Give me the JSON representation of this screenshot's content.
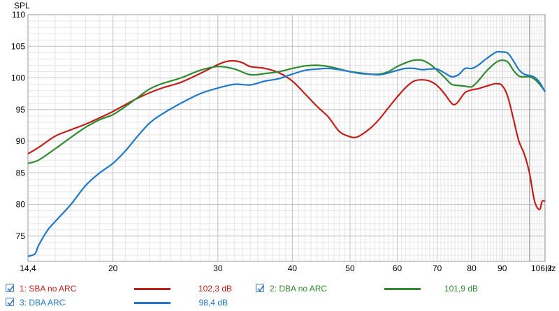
{
  "chart_data": {
    "type": "line",
    "ylabel": "SPL",
    "xunit": "Hz",
    "xscale": "log",
    "xlim": [
      14.4,
      106.2
    ],
    "ylim": [
      71,
      110
    ],
    "x_ticks": [
      "14,4",
      "20",
      "30",
      "40",
      "50",
      "60",
      "70",
      "80",
      "90",
      "106,2"
    ],
    "x_tick_values": [
      14.4,
      20,
      30,
      40,
      50,
      60,
      70,
      80,
      90,
      106.2
    ],
    "y_ticks": [
      "110",
      "105",
      "100",
      "95",
      "90",
      "85",
      "80",
      "75"
    ],
    "y_tick_values": [
      110,
      105,
      100,
      95,
      90,
      85,
      80,
      75
    ],
    "grid": true,
    "legend_position": "bottom",
    "series": [
      {
        "name": "1: SBA no ARC",
        "color": "#c0201a",
        "level": "102,3 dB",
        "checked": true,
        "x": [
          14.4,
          15,
          16,
          17,
          18,
          19,
          20,
          22,
          24,
          26,
          28,
          30,
          31,
          32,
          33,
          34,
          36,
          38,
          40,
          42,
          44,
          46,
          48,
          50,
          51,
          52,
          54,
          56,
          58,
          60,
          62,
          64,
          66,
          68,
          70,
          72,
          74,
          75,
          76,
          78,
          80,
          82,
          84,
          86,
          88,
          90,
          92,
          94,
          96,
          98,
          100,
          102,
          104,
          105,
          106.2
        ],
        "y": [
          88,
          89,
          90.8,
          91.8,
          92.7,
          93.7,
          94.7,
          96.8,
          98.3,
          99.3,
          100.7,
          102.1,
          102.6,
          102.7,
          102.4,
          101.8,
          101.5,
          100.8,
          99.5,
          97.5,
          95.5,
          93.8,
          91.5,
          90.7,
          90.6,
          90.9,
          92,
          93.5,
          95.3,
          97,
          98.5,
          99.5,
          99.7,
          99.5,
          98.8,
          97.5,
          96,
          95.8,
          96.3,
          97.7,
          98.1,
          98.3,
          98.6,
          98.9,
          99.1,
          98.8,
          97,
          93.5,
          90,
          88,
          85,
          80.5,
          79.2,
          80.5,
          80.5
        ]
      },
      {
        "name": "2: DBA no ARC",
        "color": "#2f8a2f",
        "level": "101,9 dB",
        "checked": true,
        "x": [
          14.4,
          15,
          16,
          17,
          18,
          19,
          20,
          21,
          22,
          23,
          24,
          26,
          28,
          30,
          32,
          34,
          36,
          38,
          40,
          42,
          44,
          46,
          48,
          50,
          52,
          54,
          56,
          58,
          60,
          62,
          64,
          66,
          68,
          70,
          72,
          74,
          76,
          78,
          80,
          82,
          84,
          86,
          88,
          90,
          92,
          94,
          96,
          98,
          100,
          102,
          104,
          106.2
        ],
        "y": [
          86.5,
          87,
          88.8,
          90.6,
          92.2,
          93.4,
          94.2,
          95.5,
          96.9,
          98.2,
          99,
          100,
          101.2,
          101.8,
          101.4,
          100.5,
          100.7,
          101,
          101.5,
          101.9,
          102,
          101.8,
          101.4,
          101,
          100.8,
          100.6,
          100.6,
          101,
          101.8,
          102.4,
          102.8,
          102.8,
          102.2,
          101.2,
          100.1,
          99,
          98.8,
          98.7,
          98.6,
          99.5,
          100.7,
          101.7,
          102.5,
          102.8,
          102.5,
          101.2,
          100.3,
          100.2,
          100.2,
          99.8,
          99,
          97.9
        ]
      },
      {
        "name": "3: DBA ARC",
        "color": "#1f78c8",
        "level": "98,4 dB",
        "checked": true,
        "x": [
          14.4,
          14.8,
          15,
          15.5,
          16,
          17,
          18,
          19,
          20,
          21,
          22,
          23,
          24,
          26,
          28,
          30,
          32,
          34,
          36,
          38,
          40,
          42,
          44,
          46,
          48,
          50,
          52,
          54,
          56,
          58,
          60,
          62,
          64,
          66,
          68,
          70,
          72,
          74,
          76,
          78,
          80,
          82,
          84,
          86,
          88,
          90,
          92,
          94,
          96,
          98,
          100,
          102,
          104,
          106.2
        ],
        "y": [
          71.8,
          72.2,
          73.5,
          75.8,
          77.3,
          80,
          83,
          85,
          86.5,
          88.5,
          90.8,
          92.8,
          94.1,
          96,
          97.5,
          98.4,
          99,
          98.9,
          99.5,
          99.9,
          100.6,
          101.2,
          101.4,
          101.5,
          101.3,
          101,
          100.7,
          100.6,
          100.5,
          100.8,
          101.2,
          101.5,
          101.5,
          101.3,
          101.4,
          101.4,
          100.8,
          100.2,
          100.5,
          101.5,
          101.5,
          102,
          102.8,
          103.5,
          104.1,
          104.1,
          103.9,
          102.7,
          101.3,
          100.6,
          100.4,
          100.1,
          99.3,
          97.8
        ]
      }
    ]
  }
}
